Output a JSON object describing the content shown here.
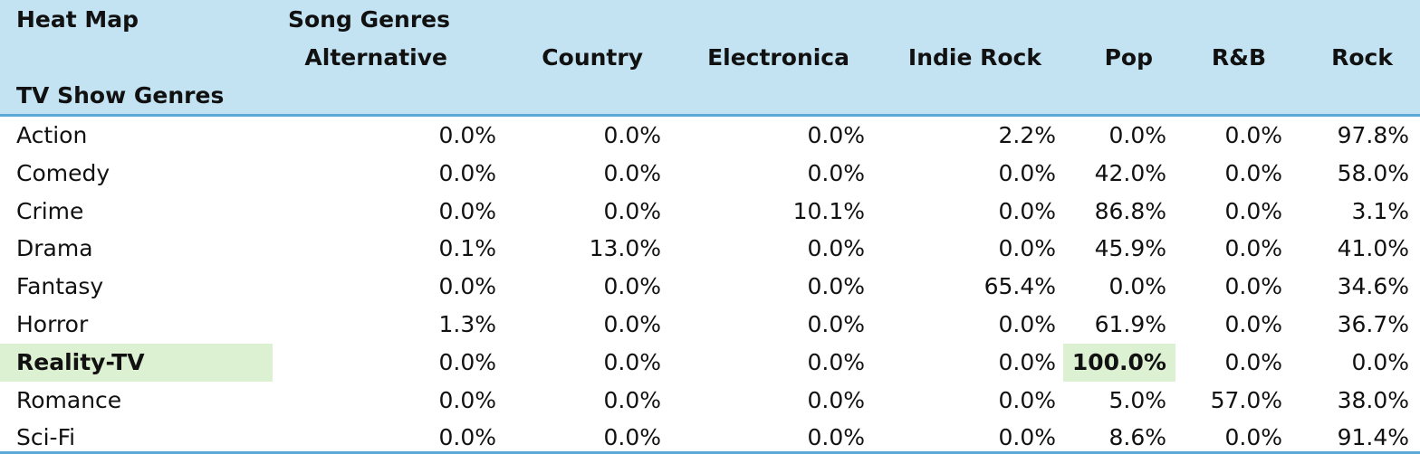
{
  "header": {
    "title": "Heat Map",
    "song_group": "Song Genres",
    "row_group": "TV Show Genres",
    "columns": [
      "Alternative",
      "Country",
      "Electronica",
      "Indie Rock",
      "Pop",
      "R&B",
      "Rock"
    ]
  },
  "rows": [
    {
      "label": "Action",
      "values": [
        "0.0%",
        "0.0%",
        "0.0%",
        "2.2%",
        "0.0%",
        "0.0%",
        "97.8%"
      ]
    },
    {
      "label": "Comedy",
      "values": [
        "0.0%",
        "0.0%",
        "0.0%",
        "0.0%",
        "42.0%",
        "0.0%",
        "58.0%"
      ]
    },
    {
      "label": "Crime",
      "values": [
        "0.0%",
        "0.0%",
        "10.1%",
        "0.0%",
        "86.8%",
        "0.0%",
        "3.1%"
      ]
    },
    {
      "label": "Drama",
      "values": [
        "0.1%",
        "13.0%",
        "0.0%",
        "0.0%",
        "45.9%",
        "0.0%",
        "41.0%"
      ]
    },
    {
      "label": "Fantasy",
      "values": [
        "0.0%",
        "0.0%",
        "0.0%",
        "65.4%",
        "0.0%",
        "0.0%",
        "34.6%"
      ]
    },
    {
      "label": "Horror",
      "values": [
        "1.3%",
        "0.0%",
        "0.0%",
        "0.0%",
        "61.9%",
        "0.0%",
        "36.7%"
      ]
    },
    {
      "label": "Reality-TV",
      "values": [
        "0.0%",
        "0.0%",
        "0.0%",
        "0.0%",
        "100.0%",
        "0.0%",
        "0.0%"
      ],
      "highlighted": true,
      "highlight_column": 4
    },
    {
      "label": "Romance",
      "values": [
        "0.0%",
        "0.0%",
        "0.0%",
        "0.0%",
        "5.0%",
        "57.0%",
        "38.0%"
      ]
    },
    {
      "label": "Sci-Fi",
      "values": [
        "0.0%",
        "0.0%",
        "0.0%",
        "0.0%",
        "8.6%",
        "0.0%",
        "91.4%"
      ]
    }
  ],
  "colors": {
    "header_bg": "#c3e3f3",
    "header_border": "#5aa9d6",
    "highlight_bg": "#dcf0d2"
  }
}
